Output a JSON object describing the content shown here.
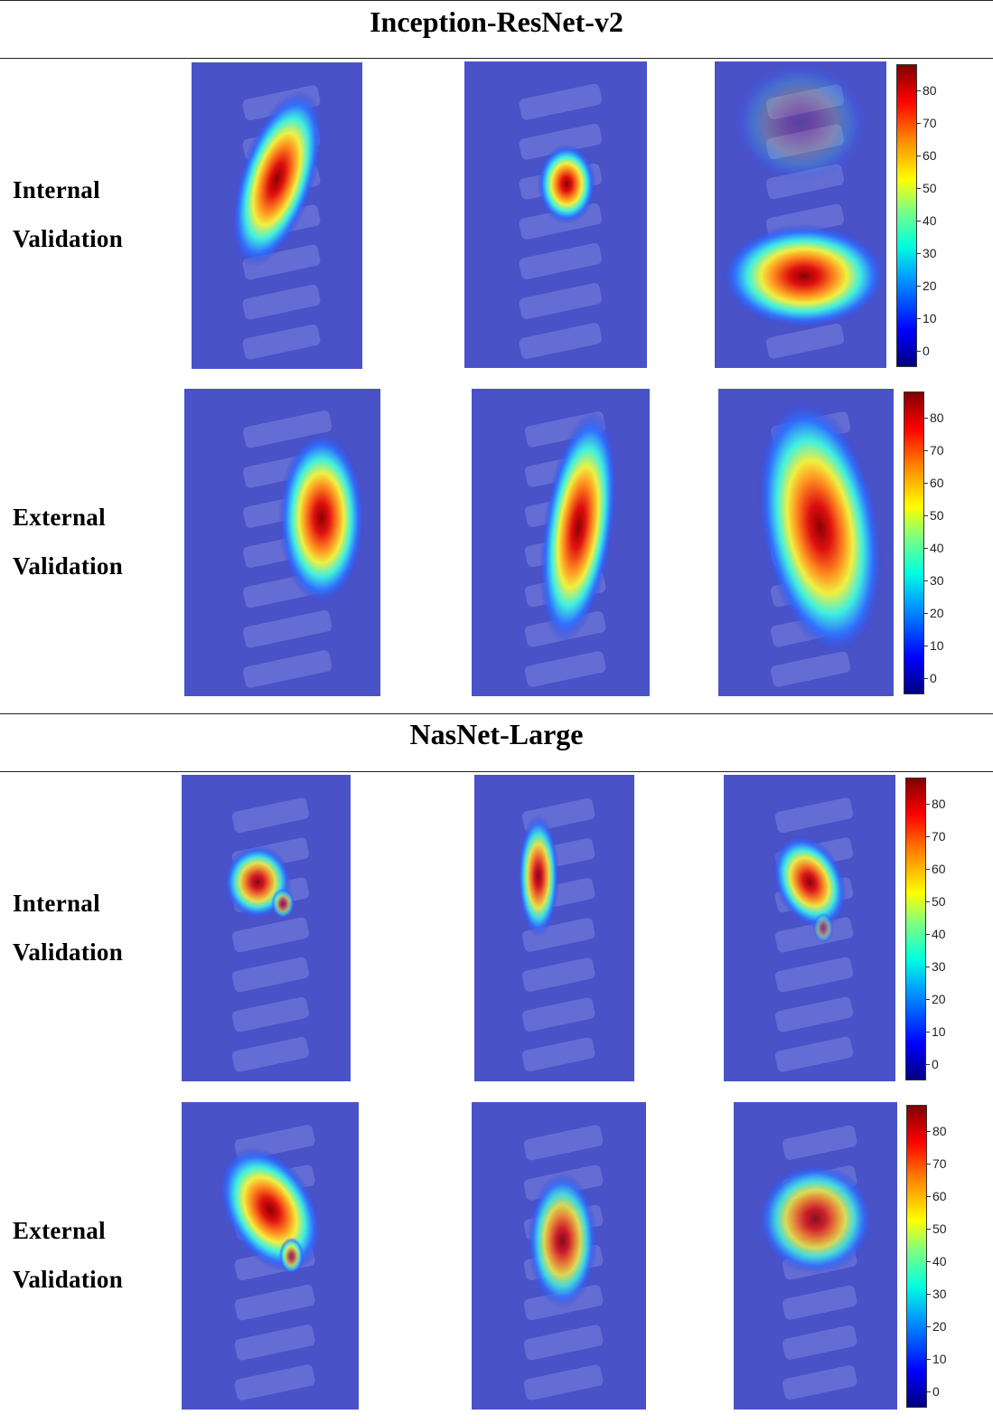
{
  "sections": [
    {
      "title": "Inception-ResNet-v2",
      "rows": [
        {
          "label_line1": "Internal",
          "label_line2": "Validation"
        },
        {
          "label_line1": "External",
          "label_line2": "Validation"
        }
      ]
    },
    {
      "title": "NasNet-Large",
      "rows": [
        {
          "label_line1": "Internal",
          "label_line2": "Validation"
        },
        {
          "label_line1": "External",
          "label_line2": "Validation"
        }
      ]
    }
  ],
  "colorbar": {
    "ticks": [
      "0",
      "10",
      "20",
      "30",
      "40",
      "50",
      "60",
      "70",
      "80"
    ],
    "colors": [
      "#00007f",
      "#0000ff",
      "#00a0ff",
      "#00ffe0",
      "#7fff80",
      "#ffff00",
      "#ff8000",
      "#ff0000",
      "#800000"
    ]
  }
}
